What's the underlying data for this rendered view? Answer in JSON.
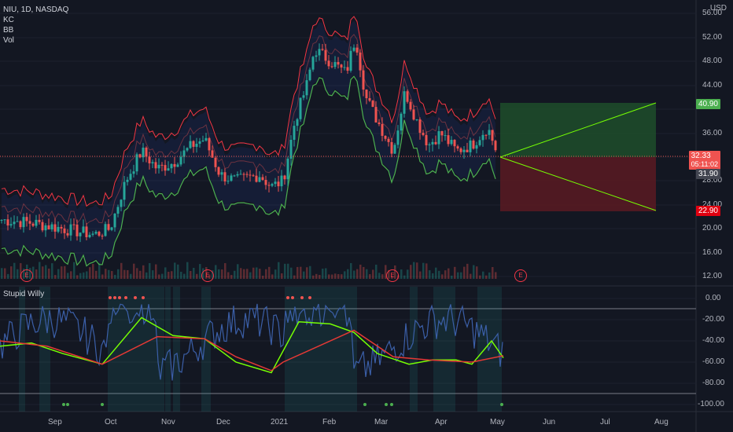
{
  "header": {
    "symbol": "NIU, 1D, NASDAQ",
    "indicators": [
      "KC",
      "BB",
      "Vol"
    ],
    "currency": "USD"
  },
  "price_axis": {
    "labels": [
      "56.00",
      "52.00",
      "48.00",
      "44.00",
      "40.00",
      "36.00",
      "32.00",
      "28.00",
      "24.00",
      "20.00",
      "16.00",
      "12.00"
    ]
  },
  "price_badges": {
    "target": "40.90",
    "current": "32.33",
    "countdown": "05:11:02",
    "entry": "31.90",
    "stop": "22.90"
  },
  "earnings_marker": "E",
  "subpane": {
    "title": "Stupid Willy",
    "labels": [
      "0.00",
      "-20.00",
      "-40.00",
      "-60.00",
      "-80.00",
      "-100.00"
    ]
  },
  "time_axis": {
    "labels": [
      "Sep",
      "Oct",
      "Nov",
      "Dec",
      "2021",
      "Feb",
      "Mar",
      "Apr",
      "May",
      "Jun",
      "Jul",
      "Aug"
    ]
  },
  "colors": {
    "background": "#131722",
    "up": "#26a69a",
    "down": "#ef5350",
    "keltner": "#f23645",
    "bollinger_lower": "#4caf50",
    "target_zone": "#1f4d2a",
    "stop_zone": "#5a1a22",
    "osc_fast": "#3b5fa8",
    "osc_signal_green": "#76ff03",
    "osc_signal_red": "#e53935"
  }
}
